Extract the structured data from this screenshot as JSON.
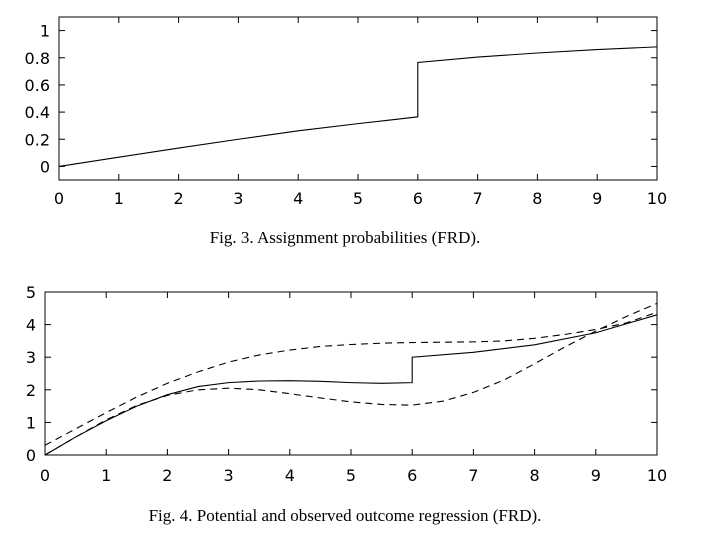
{
  "chart_data": [
    {
      "type": "line",
      "caption": "Fig. 3.  Assignment probabilities (FRD).",
      "xlim": [
        0,
        10
      ],
      "ylim": [
        -0.1,
        1.1
      ],
      "xticks": [
        "0",
        "1",
        "2",
        "3",
        "4",
        "5",
        "6",
        "7",
        "8",
        "9",
        "10"
      ],
      "yticks": [
        "0",
        "0.2",
        "0.4",
        "0.6",
        "0.8",
        "1"
      ],
      "grid": false,
      "series": [
        {
          "style": "solid",
          "x": [
            0,
            1,
            2,
            3,
            4,
            5,
            6,
            6,
            7,
            8,
            9,
            10
          ],
          "y": [
            0,
            0.068,
            0.135,
            0.2,
            0.262,
            0.315,
            0.365,
            0.765,
            0.805,
            0.835,
            0.86,
            0.88
          ]
        }
      ]
    },
    {
      "type": "line",
      "caption": "Fig. 4.  Potential and observed outcome regression (FRD).",
      "xlim": [
        0,
        10
      ],
      "ylim": [
        0,
        5
      ],
      "xticks": [
        "0",
        "1",
        "2",
        "3",
        "4",
        "5",
        "6",
        "7",
        "8",
        "9",
        "10"
      ],
      "yticks": [
        "0",
        "1",
        "2",
        "3",
        "4",
        "5"
      ],
      "grid": false,
      "series": [
        {
          "style": "solid",
          "x": [
            0,
            0.5,
            1,
            1.5,
            2,
            2.5,
            3,
            3.5,
            4,
            4.5,
            5,
            5.5,
            6,
            6,
            7,
            8,
            9,
            10
          ],
          "y": [
            0,
            0.55,
            1.05,
            1.5,
            1.85,
            2.1,
            2.22,
            2.27,
            2.28,
            2.26,
            2.22,
            2.2,
            2.22,
            3.0,
            3.15,
            3.38,
            3.75,
            4.3
          ]
        },
        {
          "style": "dashed",
          "x": [
            0,
            0.5,
            1,
            1.5,
            2,
            2.5,
            3,
            3.5,
            4,
            4.5,
            5,
            5.5,
            6,
            6.5,
            7,
            7.5,
            8,
            8.5,
            9,
            9.5,
            10
          ],
          "y": [
            0.3,
            0.8,
            1.3,
            1.78,
            2.2,
            2.55,
            2.85,
            3.07,
            3.22,
            3.33,
            3.39,
            3.43,
            3.45,
            3.46,
            3.47,
            3.5,
            3.58,
            3.7,
            3.85,
            4.05,
            4.38
          ]
        },
        {
          "style": "dashed",
          "x": [
            0,
            0.5,
            1,
            1.5,
            2,
            2.5,
            3,
            3.5,
            4,
            4.5,
            5,
            5.5,
            6,
            6.5,
            7,
            7.5,
            8,
            8.5,
            9,
            9.5,
            10
          ],
          "y": [
            0,
            0.55,
            1.08,
            1.52,
            1.83,
            2.0,
            2.05,
            2.0,
            1.88,
            1.75,
            1.63,
            1.55,
            1.53,
            1.65,
            1.92,
            2.3,
            2.8,
            3.32,
            3.8,
            4.25,
            4.65
          ]
        }
      ]
    }
  ]
}
